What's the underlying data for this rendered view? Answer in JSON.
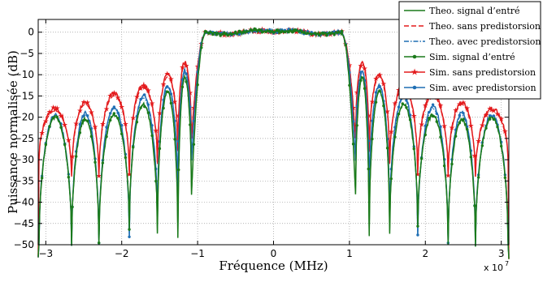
{
  "chart_data": {
    "type": "line",
    "xlabel": "Fréquence (MHz)",
    "ylabel": "Puissance normalisée (dB)",
    "x_exponent_label": "x 10",
    "x_exponent_power": "7",
    "xlim": [
      -31000000,
      31000000
    ],
    "ylim": [
      -50,
      3
    ],
    "xticks": [
      -30000000,
      -20000000,
      -10000000,
      0,
      10000000,
      20000000,
      30000000
    ],
    "xtick_labels": [
      "−3",
      "−2",
      "−1",
      "0",
      "1",
      "2",
      "3"
    ],
    "yticks": [
      0,
      -5,
      -10,
      -15,
      -20,
      -25,
      -30,
      -35,
      -40,
      -45,
      -50
    ],
    "ytick_labels": [
      "0",
      "−5",
      "−10",
      "−15",
      "−20",
      "−25",
      "−30",
      "−35",
      "−40",
      "−45",
      "−50"
    ],
    "grid": true,
    "legend_position": "top-right",
    "passband": {
      "edge_hz": 9000000,
      "level_db": 0
    },
    "nulls_hz": [
      10800000,
      12600000,
      15300000,
      19000000,
      23000000,
      26600000,
      30900000
    ],
    "series": [
      {
        "name": "Theo. signal d’entré",
        "color": "#1a7a1a",
        "style": "solid",
        "lobe_peaks_db": [
          -10.5,
          -14,
          -17,
          -19.5,
          -20.5,
          -20
        ]
      },
      {
        "name": "Theo. sans predistorsion",
        "color": "#e31a1c",
        "style": "dashed",
        "lobe_peaks_db": [
          -7.5,
          -10.5,
          -13,
          -15,
          -17,
          -18.5
        ]
      },
      {
        "name": "Theo. avec predistorsion",
        "color": "#1f6fb4",
        "style": "dashdot",
        "lobe_peaks_db": [
          -9.5,
          -13,
          -15.5,
          -18,
          -19.5,
          -20
        ]
      },
      {
        "name": "Sim. signal d’entré",
        "color": "#1a7a1a",
        "style": "solid",
        "marker": "dot",
        "lobe_peaks_db": [
          -10.5,
          -14,
          -17,
          -19.5,
          -20.5,
          -20
        ]
      },
      {
        "name": "Sim. sans predistorsion",
        "color": "#e31a1c",
        "style": "solid",
        "marker": "star",
        "lobe_peaks_db": [
          -7,
          -10,
          -12.5,
          -14.5,
          -16.5,
          -18
        ]
      },
      {
        "name": "Sim. avec predistorsion",
        "color": "#1f6fb4",
        "style": "solid",
        "marker": "dot",
        "lobe_peaks_db": [
          -9,
          -12.5,
          -15,
          -17.5,
          -19,
          -19.5
        ]
      }
    ]
  }
}
